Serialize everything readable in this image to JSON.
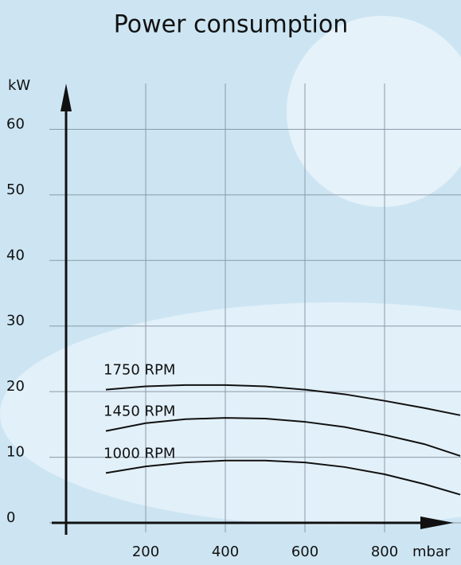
{
  "chart_data": {
    "type": "line",
    "title": "Power consumption",
    "y_label": "kW",
    "x_label": "mbar",
    "x": [
      100,
      200,
      300,
      400,
      500,
      600,
      700,
      800,
      900,
      990
    ],
    "series": [
      {
        "name": "1750 RPM",
        "color": "#111111",
        "values": [
          20.3,
          20.8,
          21.0,
          21.0,
          20.8,
          20.3,
          19.6,
          18.6,
          17.5,
          16.4
        ]
      },
      {
        "name": "1450 RPM",
        "color": "#111111",
        "values": [
          14.0,
          15.2,
          15.8,
          16.0,
          15.9,
          15.4,
          14.6,
          13.4,
          12.0,
          10.2
        ]
      },
      {
        "name": "1000 RPM",
        "color": "#111111",
        "values": [
          7.6,
          8.6,
          9.2,
          9.5,
          9.5,
          9.2,
          8.5,
          7.4,
          5.9,
          4.3
        ]
      }
    ],
    "xlim": [
      0,
      990
    ],
    "xticks": [
      200,
      400,
      600,
      800
    ],
    "ylim": [
      0,
      66
    ],
    "yticks": [
      0,
      10,
      20,
      30,
      40,
      50,
      60
    ],
    "grid": true
  }
}
